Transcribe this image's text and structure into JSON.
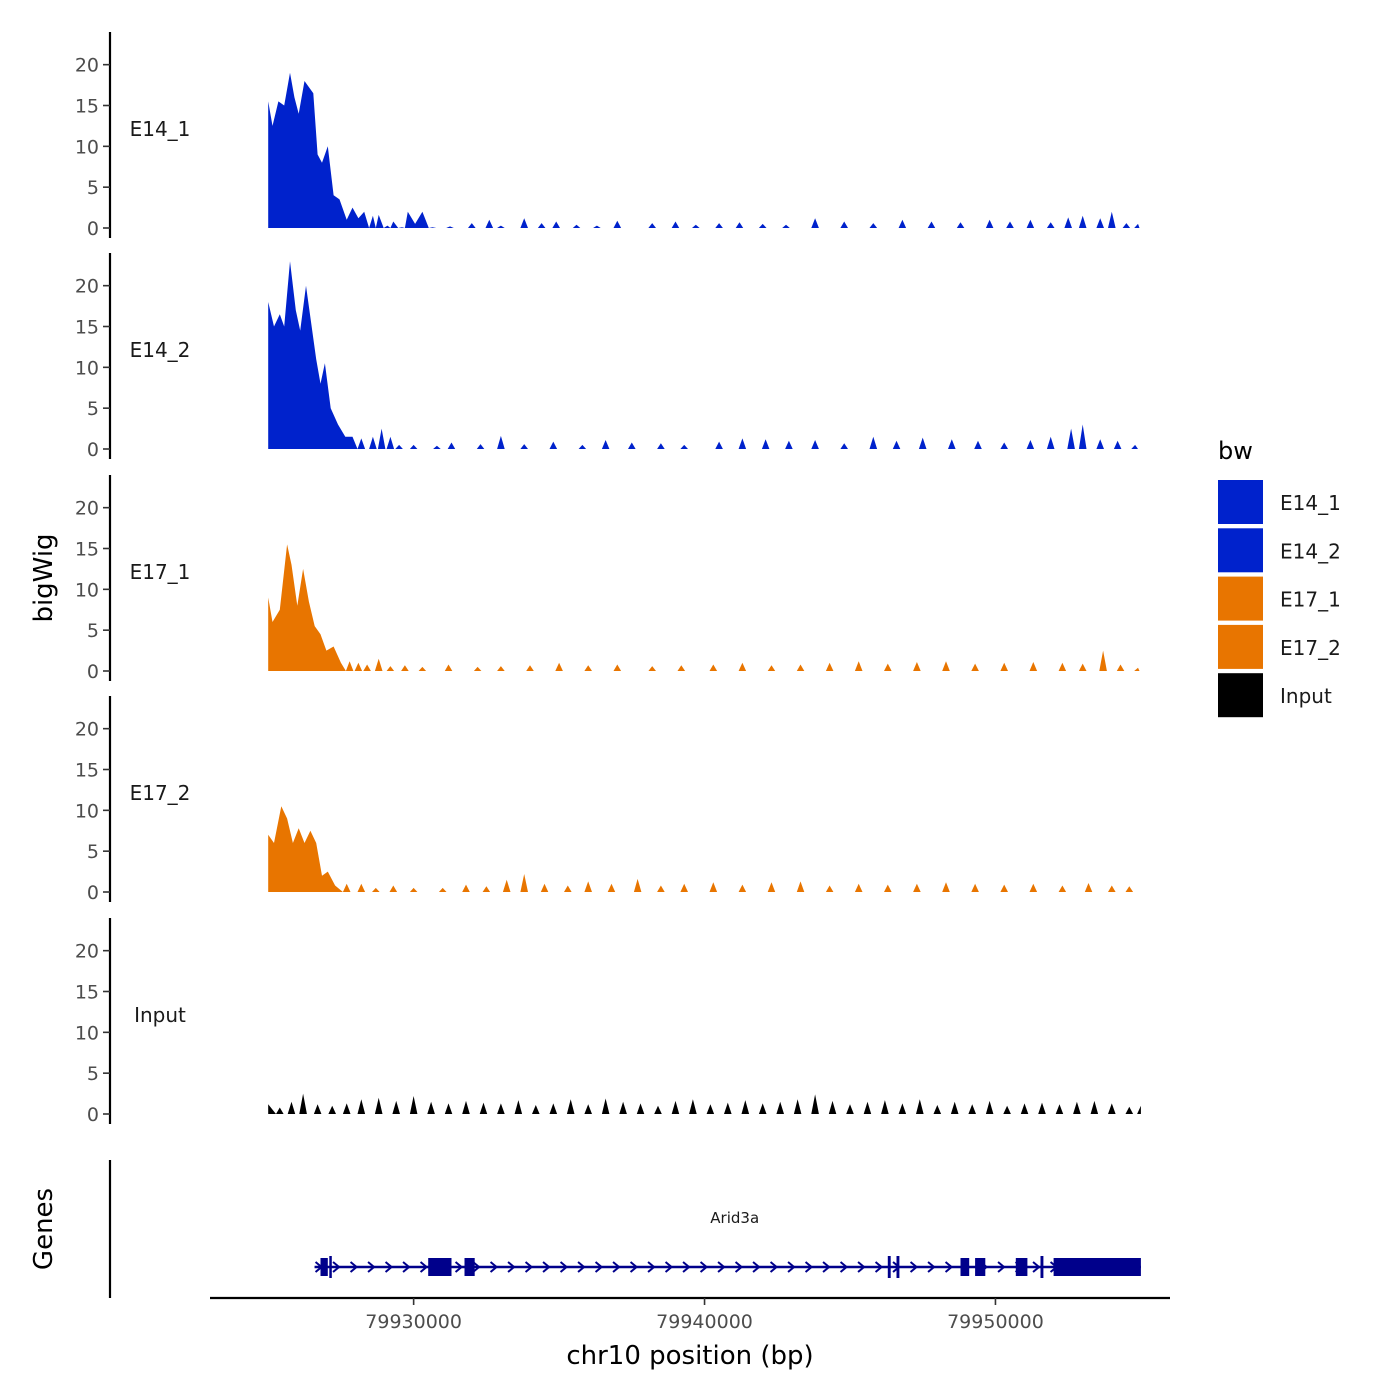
{
  "chart_data": {
    "type": "area",
    "chromosome": "chr10",
    "xlabel": "chr10 position (bp)",
    "ylabel": "bigWig",
    "genes_label": "Genes",
    "xlim": [
      79923000,
      79956000
    ],
    "x_ticks": [
      79930000,
      79940000,
      79950000
    ],
    "x_tick_labels": [
      "79930000",
      "79940000",
      "79950000"
    ],
    "ylim": [
      0,
      24
    ],
    "y_ticks": [
      0,
      5,
      10,
      15,
      20
    ],
    "y_tick_labels": [
      "0",
      "5",
      "10",
      "15",
      "20"
    ],
    "signal_range": [
      79925000,
      79955000
    ],
    "tracks": [
      {
        "name": "E14_1",
        "color": "#0022CC",
        "peaks": [
          [
            79925000,
            15.5
          ],
          [
            79925150,
            12.5
          ],
          [
            79925350,
            15.5
          ],
          [
            79925550,
            15.0
          ],
          [
            79925750,
            19.0
          ],
          [
            79925900,
            16.0
          ],
          [
            79926050,
            14.0
          ],
          [
            79926250,
            18.0
          ],
          [
            79926550,
            16.5
          ],
          [
            79926700,
            9.0
          ],
          [
            79926850,
            8.0
          ],
          [
            79927050,
            10.0
          ],
          [
            79927250,
            4.0
          ],
          [
            79927450,
            3.5
          ],
          [
            79927700,
            1.0
          ],
          [
            79927900,
            2.5
          ],
          [
            79928100,
            1.2
          ],
          [
            79928300,
            2.0
          ],
          [
            79928600,
            1.5
          ],
          [
            79928800,
            1.6
          ],
          [
            79929100,
            0.3
          ],
          [
            79929300,
            0.8
          ],
          [
            79929600,
            0.1
          ],
          [
            79929800,
            2.0
          ],
          [
            79930050,
            0.5
          ],
          [
            79930300,
            2.0
          ],
          [
            79930650,
            0.1
          ],
          [
            79931250,
            0.2
          ],
          [
            79932000,
            0.6
          ],
          [
            79932600,
            1.0
          ],
          [
            79933000,
            0.3
          ],
          [
            79933800,
            1.2
          ],
          [
            79934400,
            0.6
          ],
          [
            79934900,
            0.8
          ],
          [
            79935600,
            0.4
          ],
          [
            79936300,
            0.3
          ],
          [
            79937000,
            0.9
          ],
          [
            79938200,
            0.6
          ],
          [
            79939000,
            0.8
          ],
          [
            79939700,
            0.4
          ],
          [
            79940500,
            0.6
          ],
          [
            79941200,
            0.7
          ],
          [
            79942000,
            0.5
          ],
          [
            79942800,
            0.4
          ],
          [
            79943800,
            1.2
          ],
          [
            79944800,
            0.8
          ],
          [
            79945800,
            0.6
          ],
          [
            79946800,
            1.0
          ],
          [
            79947800,
            0.8
          ],
          [
            79948800,
            0.7
          ],
          [
            79949800,
            1.0
          ],
          [
            79950500,
            0.8
          ],
          [
            79951200,
            1.0
          ],
          [
            79951900,
            0.7
          ],
          [
            79952500,
            1.3
          ],
          [
            79953000,
            1.5
          ],
          [
            79953600,
            1.2
          ],
          [
            79954000,
            2.0
          ],
          [
            79954500,
            0.6
          ],
          [
            79954900,
            0.5
          ]
        ]
      },
      {
        "name": "E14_2",
        "color": "#0022CC",
        "peaks": [
          [
            79925000,
            18.0
          ],
          [
            79925200,
            15.0
          ],
          [
            79925400,
            16.5
          ],
          [
            79925550,
            15.0
          ],
          [
            79925750,
            23.0
          ],
          [
            79925950,
            17.0
          ],
          [
            79926100,
            14.5
          ],
          [
            79926300,
            20.0
          ],
          [
            79926650,
            11.0
          ],
          [
            79926800,
            8.0
          ],
          [
            79926950,
            10.5
          ],
          [
            79927150,
            5.0
          ],
          [
            79927400,
            3.0
          ],
          [
            79927650,
            1.5
          ],
          [
            79927900,
            1.5
          ],
          [
            79928200,
            1.3
          ],
          [
            79928600,
            1.5
          ],
          [
            79928900,
            2.5
          ],
          [
            79929200,
            1.5
          ],
          [
            79929500,
            0.5
          ],
          [
            79930000,
            0.5
          ],
          [
            79930800,
            0.4
          ],
          [
            79931300,
            0.8
          ],
          [
            79932300,
            0.6
          ],
          [
            79933000,
            1.6
          ],
          [
            79933800,
            0.6
          ],
          [
            79934800,
            0.9
          ],
          [
            79935800,
            0.5
          ],
          [
            79936600,
            1.1
          ],
          [
            79937500,
            0.8
          ],
          [
            79938500,
            0.7
          ],
          [
            79939300,
            0.5
          ],
          [
            79940500,
            0.9
          ],
          [
            79941300,
            1.3
          ],
          [
            79942100,
            1.2
          ],
          [
            79942900,
            1.0
          ],
          [
            79943800,
            1.1
          ],
          [
            79944800,
            0.7
          ],
          [
            79945800,
            1.5
          ],
          [
            79946600,
            1.0
          ],
          [
            79947500,
            1.4
          ],
          [
            79948500,
            1.2
          ],
          [
            79949400,
            1.0
          ],
          [
            79950300,
            0.8
          ],
          [
            79951200,
            1.1
          ],
          [
            79951900,
            1.5
          ],
          [
            79952600,
            2.5
          ],
          [
            79953000,
            3.0
          ],
          [
            79953600,
            1.2
          ],
          [
            79954200,
            1.0
          ],
          [
            79954800,
            0.5
          ]
        ]
      },
      {
        "name": "E17_1",
        "color": "#E87500",
        "peaks": [
          [
            79925000,
            9.0
          ],
          [
            79925150,
            6.0
          ],
          [
            79925400,
            7.5
          ],
          [
            79925650,
            15.5
          ],
          [
            79925800,
            13.0
          ],
          [
            79926000,
            8.0
          ],
          [
            79926200,
            12.5
          ],
          [
            79926400,
            8.5
          ],
          [
            79926600,
            5.5
          ],
          [
            79926800,
            4.5
          ],
          [
            79927000,
            2.5
          ],
          [
            79927250,
            3.0
          ],
          [
            79927500,
            1.0
          ],
          [
            79927800,
            1.2
          ],
          [
            79928100,
            1.0
          ],
          [
            79928400,
            0.8
          ],
          [
            79928800,
            1.5
          ],
          [
            79929200,
            0.6
          ],
          [
            79929700,
            0.7
          ],
          [
            79930300,
            0.5
          ],
          [
            79931200,
            0.8
          ],
          [
            79932200,
            0.5
          ],
          [
            79933000,
            0.6
          ],
          [
            79934000,
            0.7
          ],
          [
            79935000,
            1.0
          ],
          [
            79936000,
            0.7
          ],
          [
            79937000,
            0.8
          ],
          [
            79938200,
            0.6
          ],
          [
            79939200,
            0.7
          ],
          [
            79940300,
            0.8
          ],
          [
            79941300,
            1.0
          ],
          [
            79942300,
            0.7
          ],
          [
            79943300,
            0.8
          ],
          [
            79944300,
            1.0
          ],
          [
            79945300,
            1.2
          ],
          [
            79946300,
            0.9
          ],
          [
            79947300,
            1.1
          ],
          [
            79948300,
            1.2
          ],
          [
            79949300,
            0.9
          ],
          [
            79950300,
            1.0
          ],
          [
            79951300,
            1.1
          ],
          [
            79952300,
            1.0
          ],
          [
            79953000,
            0.9
          ],
          [
            79953700,
            2.5
          ],
          [
            79954300,
            0.8
          ],
          [
            79954900,
            0.4
          ]
        ]
      },
      {
        "name": "E17_2",
        "color": "#E87500",
        "peaks": [
          [
            79925000,
            7.0
          ],
          [
            79925200,
            6.0
          ],
          [
            79925450,
            10.5
          ],
          [
            79925650,
            9.0
          ],
          [
            79925850,
            6.0
          ],
          [
            79926050,
            7.8
          ],
          [
            79926250,
            6.0
          ],
          [
            79926450,
            7.5
          ],
          [
            79926650,
            6.0
          ],
          [
            79926850,
            2.0
          ],
          [
            79927050,
            2.5
          ],
          [
            79927300,
            0.8
          ],
          [
            79927700,
            1.0
          ],
          [
            79928200,
            1.0
          ],
          [
            79928700,
            0.5
          ],
          [
            79929300,
            0.8
          ],
          [
            79930000,
            0.5
          ],
          [
            79931000,
            0.5
          ],
          [
            79931800,
            0.9
          ],
          [
            79932500,
            0.7
          ],
          [
            79933200,
            1.5
          ],
          [
            79933800,
            2.2
          ],
          [
            79934500,
            1.0
          ],
          [
            79935300,
            0.8
          ],
          [
            79936000,
            1.3
          ],
          [
            79936800,
            1.0
          ],
          [
            79937700,
            1.6
          ],
          [
            79938500,
            0.8
          ],
          [
            79939300,
            1.0
          ],
          [
            79940300,
            1.2
          ],
          [
            79941300,
            0.9
          ],
          [
            79942300,
            1.2
          ],
          [
            79943300,
            1.3
          ],
          [
            79944300,
            0.8
          ],
          [
            79945300,
            1.0
          ],
          [
            79946300,
            0.9
          ],
          [
            79947300,
            1.0
          ],
          [
            79948300,
            1.2
          ],
          [
            79949300,
            1.0
          ],
          [
            79950300,
            0.9
          ],
          [
            79951300,
            1.0
          ],
          [
            79952300,
            0.8
          ],
          [
            79953200,
            1.1
          ],
          [
            79954000,
            0.8
          ],
          [
            79954600,
            0.7
          ]
        ]
      },
      {
        "name": "Input",
        "color": "#000000",
        "peaks": [
          [
            79925000,
            1.2
          ],
          [
            79925400,
            0.8
          ],
          [
            79925800,
            1.5
          ],
          [
            79926200,
            2.5
          ],
          [
            79926700,
            1.2
          ],
          [
            79927200,
            1.0
          ],
          [
            79927700,
            1.3
          ],
          [
            79928200,
            1.8
          ],
          [
            79928800,
            2.0
          ],
          [
            79929400,
            1.6
          ],
          [
            79930000,
            2.2
          ],
          [
            79930600,
            1.5
          ],
          [
            79931200,
            1.3
          ],
          [
            79931800,
            1.6
          ],
          [
            79932400,
            1.4
          ],
          [
            79933000,
            1.3
          ],
          [
            79933600,
            1.7
          ],
          [
            79934200,
            1.1
          ],
          [
            79934800,
            1.3
          ],
          [
            79935400,
            1.8
          ],
          [
            79936000,
            1.2
          ],
          [
            79936600,
            1.9
          ],
          [
            79937200,
            1.5
          ],
          [
            79937800,
            1.3
          ],
          [
            79938400,
            1.0
          ],
          [
            79939000,
            1.6
          ],
          [
            79939600,
            1.8
          ],
          [
            79940200,
            1.2
          ],
          [
            79940800,
            1.4
          ],
          [
            79941400,
            1.7
          ],
          [
            79942000,
            1.3
          ],
          [
            79942600,
            1.5
          ],
          [
            79943200,
            1.8
          ],
          [
            79943800,
            2.4
          ],
          [
            79944400,
            1.6
          ],
          [
            79945000,
            1.2
          ],
          [
            79945600,
            1.5
          ],
          [
            79946200,
            1.7
          ],
          [
            79946800,
            1.3
          ],
          [
            79947400,
            1.8
          ],
          [
            79948000,
            1.1
          ],
          [
            79948600,
            1.5
          ],
          [
            79949200,
            1.2
          ],
          [
            79949800,
            1.6
          ],
          [
            79950400,
            1.0
          ],
          [
            79951000,
            1.3
          ],
          [
            79951600,
            1.4
          ],
          [
            79952200,
            1.2
          ],
          [
            79952800,
            1.5
          ],
          [
            79953400,
            1.6
          ],
          [
            79954000,
            1.3
          ],
          [
            79954600,
            0.9
          ],
          [
            79955000,
            1.0
          ]
        ]
      }
    ],
    "legend": {
      "title": "bw",
      "position": "right",
      "entries": [
        {
          "label": "E14_1",
          "color": "#0022CC"
        },
        {
          "label": "E14_2",
          "color": "#0022CC"
        },
        {
          "label": "E17_1",
          "color": "#E87500"
        },
        {
          "label": "E17_2",
          "color": "#E87500"
        },
        {
          "label": "Input",
          "color": "#000000"
        }
      ]
    },
    "gene": {
      "name": "Arid3a",
      "strand": "+",
      "color": "#00008B",
      "start": 79926800,
      "end": 79955000,
      "exons": [
        [
          79926800,
          79927050
        ],
        [
          79927100,
          79927150
        ],
        [
          79930500,
          79931300
        ],
        [
          79931750,
          79932100
        ],
        [
          79946300,
          79946400
        ],
        [
          79946600,
          79946700
        ],
        [
          79948800,
          79949100
        ],
        [
          79949300,
          79949650
        ],
        [
          79950700,
          79951100
        ],
        [
          79951550,
          79951650
        ],
        [
          79952000,
          79955000
        ]
      ]
    }
  }
}
